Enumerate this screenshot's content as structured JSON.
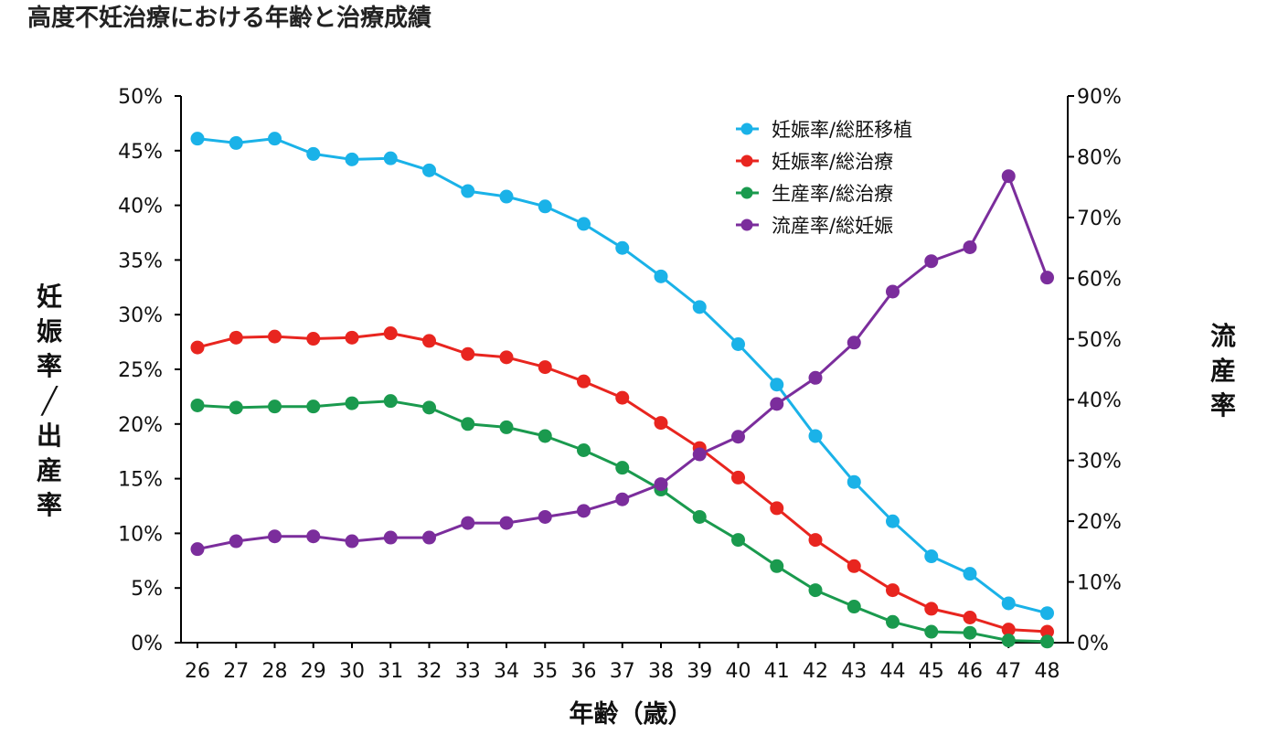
{
  "chart_data": {
    "type": "line",
    "title": "高度不妊治療における年齢と治療成績",
    "xlabel": "年齢（歳）",
    "ylabel_left": "妊娠率／出産率",
    "ylabel_right": "流産率",
    "x": [
      26,
      27,
      28,
      29,
      30,
      31,
      32,
      33,
      34,
      35,
      36,
      37,
      38,
      39,
      40,
      41,
      42,
      43,
      44,
      45,
      46,
      47,
      48
    ],
    "x_tick_labels": [
      "26",
      "27",
      "28",
      "29",
      "30",
      "31",
      "32",
      "33",
      "34",
      "35",
      "36",
      "37",
      "38",
      "39",
      "40",
      "41",
      "42",
      "43",
      "44",
      "45",
      "46",
      "47",
      "48"
    ],
    "ylim_left": [
      0,
      50
    ],
    "ylim_right": [
      0,
      90
    ],
    "y_left_ticks": [
      0,
      5,
      10,
      15,
      20,
      25,
      30,
      35,
      40,
      45,
      50
    ],
    "y_left_tick_labels": [
      "0%",
      "5%",
      "10%",
      "15%",
      "20%",
      "25%",
      "30%",
      "35%",
      "40%",
      "45%",
      "50%"
    ],
    "y_right_ticks": [
      0,
      10,
      20,
      30,
      40,
      50,
      60,
      70,
      80,
      90
    ],
    "y_right_tick_labels": [
      "0%",
      "10%",
      "20%",
      "30%",
      "40%",
      "50%",
      "60%",
      "70%",
      "80%",
      "90%"
    ],
    "grid": false,
    "legend_position": "top-right",
    "series": [
      {
        "name": "妊娠率/総胚移植",
        "axis": "left",
        "color": "#1ab2e8",
        "values": [
          46.1,
          45.7,
          46.1,
          44.7,
          44.2,
          44.3,
          43.2,
          41.3,
          40.8,
          39.9,
          38.3,
          36.1,
          33.5,
          30.7,
          27.3,
          23.6,
          18.9,
          14.7,
          11.1,
          7.9,
          6.3,
          3.6,
          2.7
        ]
      },
      {
        "name": "妊娠率/総治療",
        "axis": "left",
        "color": "#e8251f",
        "values": [
          27.0,
          27.9,
          28.0,
          27.8,
          27.9,
          28.3,
          27.6,
          26.4,
          26.1,
          25.2,
          23.9,
          22.4,
          20.1,
          17.8,
          15.1,
          12.3,
          9.4,
          7.0,
          4.8,
          3.1,
          2.3,
          1.2,
          1.0
        ]
      },
      {
        "name": "生産率/総治療",
        "axis": "left",
        "color": "#1a9a4e",
        "values": [
          21.7,
          21.5,
          21.6,
          21.6,
          21.9,
          22.1,
          21.5,
          20.0,
          19.7,
          18.9,
          17.6,
          16.0,
          14.0,
          11.5,
          9.4,
          7.0,
          4.8,
          3.3,
          1.9,
          1.0,
          0.9,
          0.2,
          0.1
        ]
      },
      {
        "name": "流産率/総妊娠",
        "axis": "right",
        "color": "#7b2d9c",
        "values": [
          15.4,
          16.7,
          17.5,
          17.5,
          16.7,
          17.3,
          17.3,
          19.7,
          19.7,
          20.7,
          21.7,
          23.6,
          26.1,
          31.0,
          33.9,
          39.3,
          43.6,
          49.4,
          57.8,
          62.8,
          65.1,
          76.8,
          60.1
        ]
      }
    ]
  }
}
